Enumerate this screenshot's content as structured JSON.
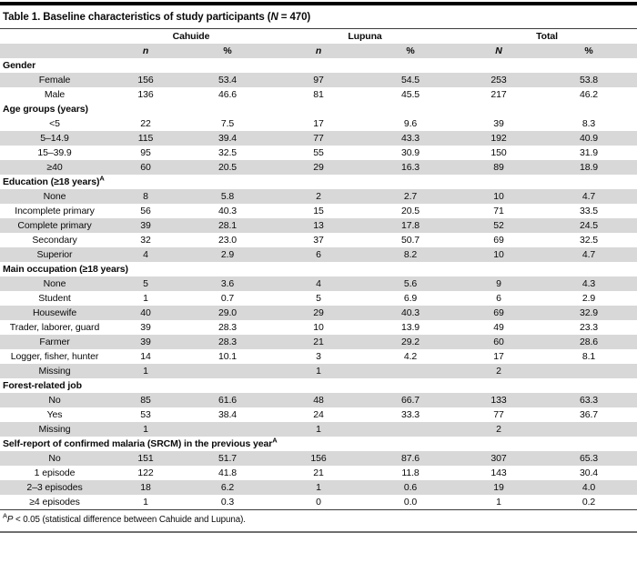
{
  "title": {
    "pre": "Table 1. Baseline characteristics of study participants (",
    "var": "N",
    "post": " = 470)"
  },
  "columns": {
    "groups": [
      "Cahuide",
      "Lupuna",
      "Total"
    ],
    "subheads": [
      "n",
      "%",
      "n",
      "%",
      "N",
      "%"
    ]
  },
  "sections": [
    {
      "header": "Gender",
      "sup": "",
      "rows": [
        {
          "label": "Female",
          "values": [
            "156",
            "53.4",
            "97",
            "54.5",
            "253",
            "53.8"
          ],
          "shaded": true
        },
        {
          "label": "Male",
          "values": [
            "136",
            "46.6",
            "81",
            "45.5",
            "217",
            "46.2"
          ],
          "shaded": false
        }
      ]
    },
    {
      "header": "Age groups (years)",
      "sup": "",
      "rows": [
        {
          "label": "<5",
          "values": [
            "22",
            "7.5",
            "17",
            "9.6",
            "39",
            "8.3"
          ],
          "shaded": false
        },
        {
          "label": "5–14.9",
          "values": [
            "115",
            "39.4",
            "77",
            "43.3",
            "192",
            "40.9"
          ],
          "shaded": true
        },
        {
          "label": "15–39.9",
          "values": [
            "95",
            "32.5",
            "55",
            "30.9",
            "150",
            "31.9"
          ],
          "shaded": false
        },
        {
          "label": "≥40",
          "values": [
            "60",
            "20.5",
            "29",
            "16.3",
            "89",
            "18.9"
          ],
          "shaded": true
        }
      ]
    },
    {
      "header": "Education (≥18 years)",
      "sup": "A",
      "rows": [
        {
          "label": "None",
          "values": [
            "8",
            "5.8",
            "2",
            "2.7",
            "10",
            "4.7"
          ],
          "shaded": true
        },
        {
          "label": "Incomplete primary",
          "values": [
            "56",
            "40.3",
            "15",
            "20.5",
            "71",
            "33.5"
          ],
          "shaded": false
        },
        {
          "label": "Complete primary",
          "values": [
            "39",
            "28.1",
            "13",
            "17.8",
            "52",
            "24.5"
          ],
          "shaded": true
        },
        {
          "label": "Secondary",
          "values": [
            "32",
            "23.0",
            "37",
            "50.7",
            "69",
            "32.5"
          ],
          "shaded": false
        },
        {
          "label": "Superior",
          "values": [
            "4",
            "2.9",
            "6",
            "8.2",
            "10",
            "4.7"
          ],
          "shaded": true
        }
      ]
    },
    {
      "header": "Main occupation (≥18 years)",
      "sup": "",
      "rows": [
        {
          "label": "None",
          "values": [
            "5",
            "3.6",
            "4",
            "5.6",
            "9",
            "4.3"
          ],
          "shaded": true
        },
        {
          "label": "Student",
          "values": [
            "1",
            "0.7",
            "5",
            "6.9",
            "6",
            "2.9"
          ],
          "shaded": false
        },
        {
          "label": "Housewife",
          "values": [
            "40",
            "29.0",
            "29",
            "40.3",
            "69",
            "32.9"
          ],
          "shaded": true
        },
        {
          "label": "Trader, laborer, guard",
          "values": [
            "39",
            "28.3",
            "10",
            "13.9",
            "49",
            "23.3"
          ],
          "shaded": false
        },
        {
          "label": "Farmer",
          "values": [
            "39",
            "28.3",
            "21",
            "29.2",
            "60",
            "28.6"
          ],
          "shaded": true
        },
        {
          "label": "Logger, fisher, hunter",
          "values": [
            "14",
            "10.1",
            "3",
            "4.2",
            "17",
            "8.1"
          ],
          "shaded": false
        },
        {
          "label": "Missing",
          "values": [
            "1",
            "",
            "1",
            "",
            "2",
            ""
          ],
          "shaded": true
        }
      ]
    },
    {
      "header": "Forest-related job",
      "sup": "",
      "rows": [
        {
          "label": "No",
          "values": [
            "85",
            "61.6",
            "48",
            "66.7",
            "133",
            "63.3"
          ],
          "shaded": true
        },
        {
          "label": "Yes",
          "values": [
            "53",
            "38.4",
            "24",
            "33.3",
            "77",
            "36.7"
          ],
          "shaded": false
        },
        {
          "label": "Missing",
          "values": [
            "1",
            "",
            "1",
            "",
            "2",
            ""
          ],
          "shaded": true
        }
      ]
    },
    {
      "header": "Self-report of confirmed malaria (SRCM) in the previous year",
      "sup": "A",
      "rows": [
        {
          "label": "No",
          "values": [
            "151",
            "51.7",
            "156",
            "87.6",
            "307",
            "65.3"
          ],
          "shaded": true
        },
        {
          "label": "1 episode",
          "values": [
            "122",
            "41.8",
            "21",
            "11.8",
            "143",
            "30.4"
          ],
          "shaded": false
        },
        {
          "label": "2–3 episodes",
          "values": [
            "18",
            "6.2",
            "1",
            "0.6",
            "19",
            "4.0"
          ],
          "shaded": true
        },
        {
          "label": "≥4 episodes",
          "values": [
            "1",
            "0.3",
            "0",
            "0.0",
            "1",
            "0.2"
          ],
          "shaded": false
        }
      ]
    }
  ],
  "footnote": {
    "sup": "A",
    "var": "P",
    "text": " < 0.05 (statistical difference between Cahuide and Lupuna)."
  }
}
